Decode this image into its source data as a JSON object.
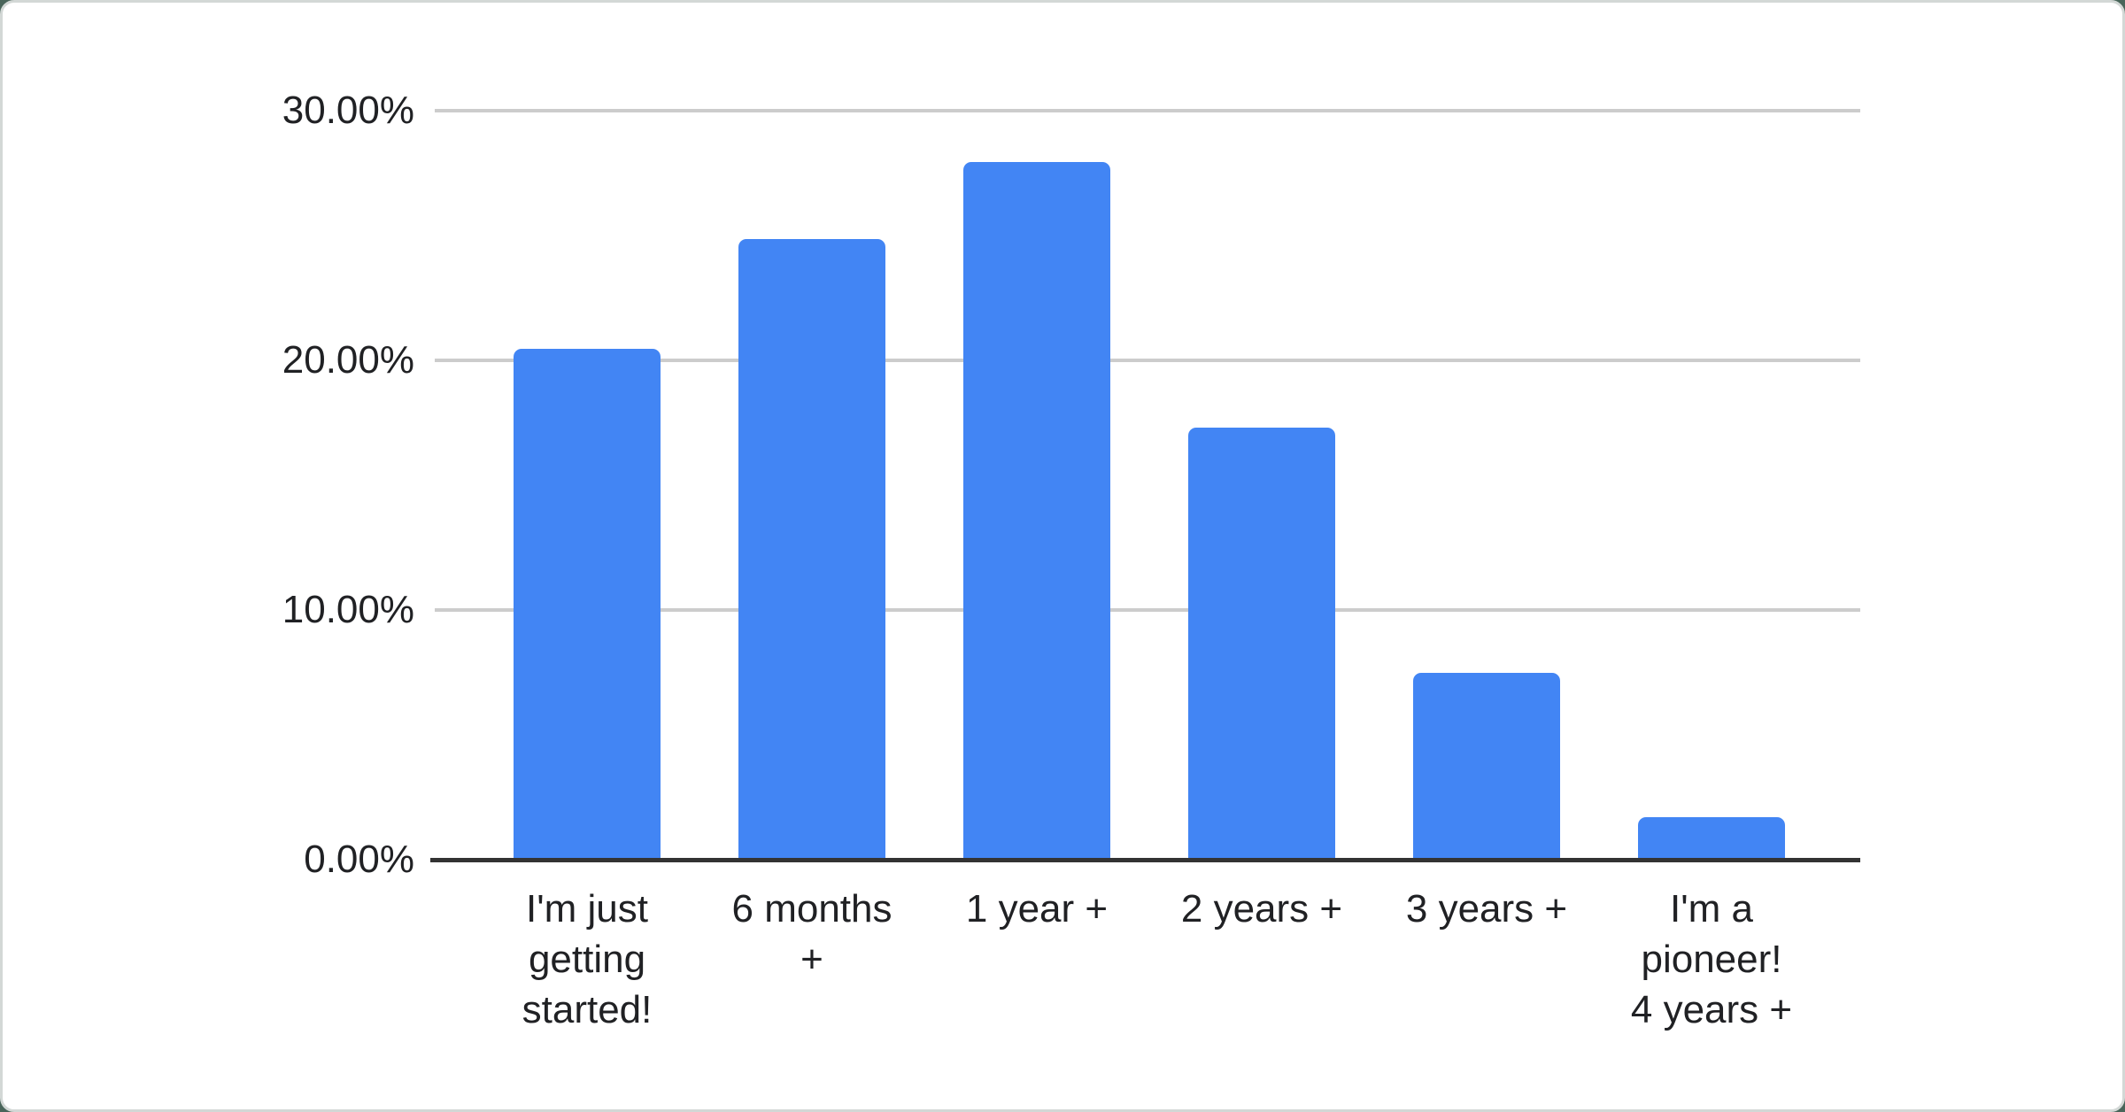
{
  "chart_data": {
    "type": "bar",
    "title": "",
    "xlabel": "",
    "ylabel": "",
    "categories": [
      "I'm just getting started!",
      "6 months +",
      "1 year +",
      "2 years +",
      "3 years +",
      "I'm a pioneer! 4 years +"
    ],
    "categories_display": [
      "I'm just\ngetting\nstarted!",
      "6 months\n+",
      "1 year +",
      "2 years +",
      "3 years +",
      "I'm a\npioneer!\n4 years +"
    ],
    "values": [
      20.45,
      24.85,
      27.95,
      17.3,
      7.5,
      1.7
    ],
    "value_unit": "percent",
    "ylim": [
      0,
      30
    ],
    "ytick_interval": 10,
    "yticks": [
      {
        "value": 0,
        "label": "0.00%"
      },
      {
        "value": 10,
        "label": "10.00%"
      },
      {
        "value": 20,
        "label": "20.00%"
      },
      {
        "value": 30,
        "label": "30.00%"
      }
    ],
    "grid": true,
    "legend_position": "none"
  },
  "theme": {
    "bar_color": "#4285F4",
    "gridline_color": "#cccccc",
    "axis_line_color": "#333333",
    "label_text_color": "#202124",
    "card_background": "#ffffff",
    "card_border_color": "#d3d8d6",
    "page_background": "#49655a"
  }
}
